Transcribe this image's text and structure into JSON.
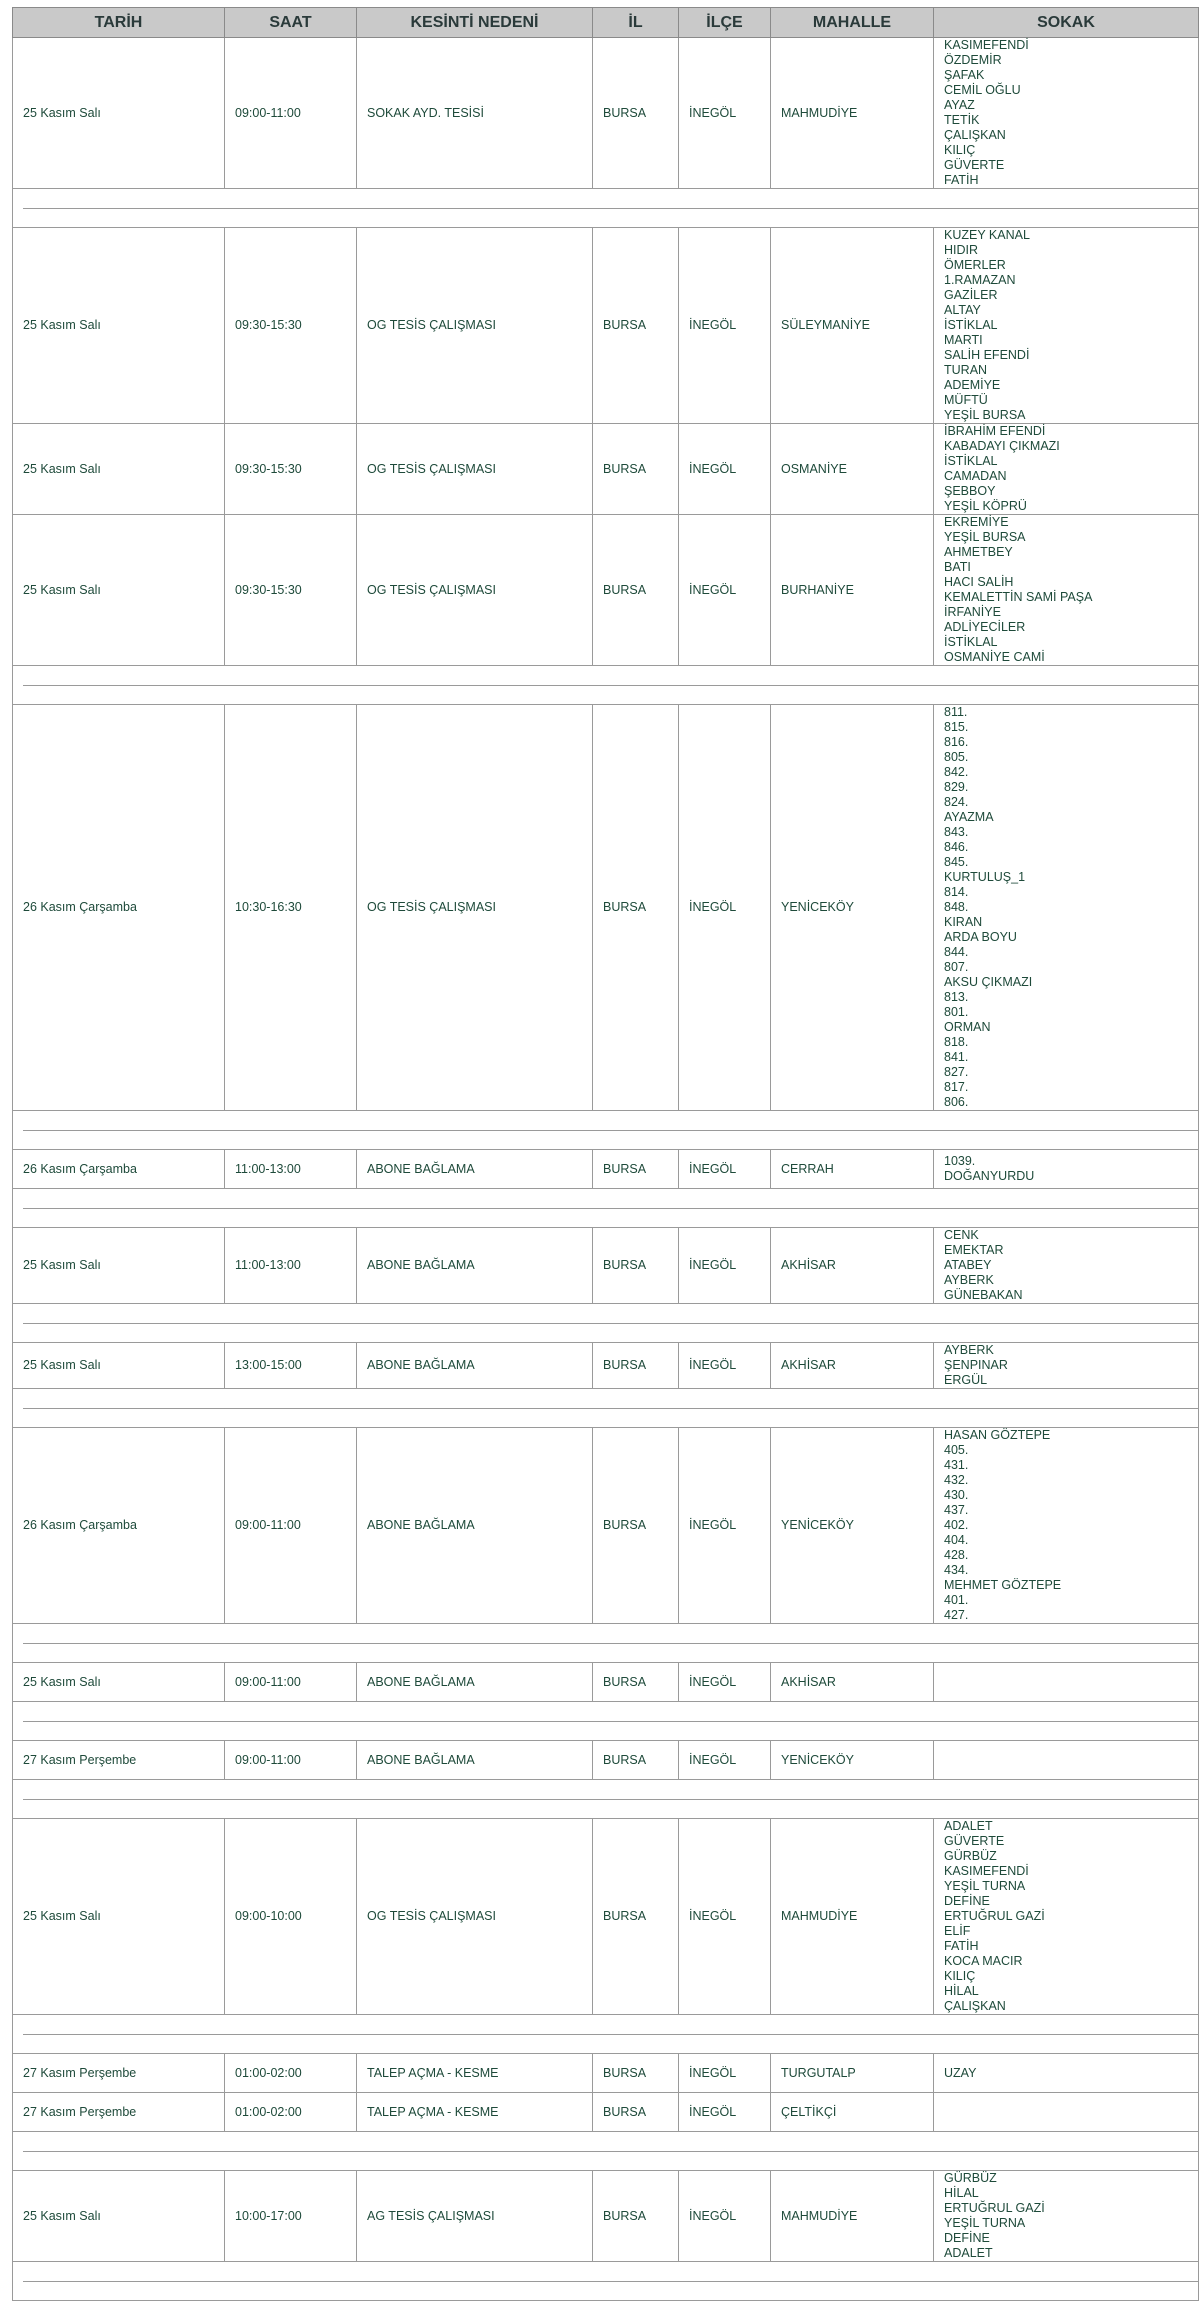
{
  "table": {
    "headers": [
      "TARİH",
      "SAAT",
      "KESİNTİ NEDENİ",
      "İL",
      "İLÇE",
      "MAHALLE",
      "SOKAK"
    ],
    "groups": [
      {
        "rows": [
          {
            "tarih": "25 Kasım Salı",
            "saat": "09:00-11:00",
            "neden": "SOKAK AYD. TESİSİ",
            "il": "BURSA",
            "ilce": "İNEGÖL",
            "mahalle": "MAHMUDİYE",
            "sokak": [
              "KASIMEFENDİ",
              "ÖZDEMİR",
              "ŞAFAK",
              "CEMİL OĞLU",
              "AYAZ",
              "TETİK",
              "ÇALIŞKAN",
              "KILIÇ",
              "GÜVERTE",
              "FATİH"
            ]
          }
        ]
      },
      {
        "rows": [
          {
            "tarih": "25 Kasım Salı",
            "saat": "09:30-15:30",
            "neden": "OG TESİS ÇALIŞMASI",
            "il": "BURSA",
            "ilce": "İNEGÖL",
            "mahalle": "SÜLEYMANİYE",
            "sokak": [
              "KUZEY KANAL",
              "HIDIR",
              "ÖMERLER",
              "1.RAMAZAN",
              "GAZİLER",
              "ALTAY",
              "İSTİKLAL",
              "MARTI",
              "SALİH EFENDİ",
              "TURAN",
              "ADEMİYE",
              "MÜFTÜ",
              "YEŞİL BURSA"
            ]
          },
          {
            "tarih": "25 Kasım Salı",
            "saat": "09:30-15:30",
            "neden": "OG TESİS ÇALIŞMASI",
            "il": "BURSA",
            "ilce": "İNEGÖL",
            "mahalle": "OSMANİYE",
            "sokak": [
              "İBRAHİM EFENDİ",
              "KABADAYI ÇIKMAZI",
              "İSTİKLAL",
              "CAMADAN",
              "ŞEBBOY",
              "YEŞİL KÖPRÜ"
            ]
          },
          {
            "tarih": "25 Kasım Salı",
            "saat": "09:30-15:30",
            "neden": "OG TESİS ÇALIŞMASI",
            "il": "BURSA",
            "ilce": "İNEGÖL",
            "mahalle": "BURHANİYE",
            "sokak": [
              "EKREMİYE",
              "YEŞİL BURSA",
              "AHMETBEY",
              "BATI",
              "HACI SALİH",
              "KEMALETTİN SAMİ PAŞA",
              "İRFANİYE",
              "ADLİYECİLER",
              "İSTİKLAL",
              "OSMANİYE CAMİ"
            ]
          }
        ]
      },
      {
        "rows": [
          {
            "tarih": "26 Kasım Çarşamba",
            "saat": "10:30-16:30",
            "neden": "OG TESİS ÇALIŞMASI",
            "il": "BURSA",
            "ilce": "İNEGÖL",
            "mahalle": "YENİCEKÖY",
            "sokak": [
              "811.",
              "815.",
              "816.",
              "805.",
              "842.",
              "829.",
              "824.",
              "AYAZMA",
              "843.",
              "846.",
              "845.",
              "KURTULUŞ_1",
              "814.",
              "848.",
              "KIRAN",
              "ARDA BOYU",
              "844.",
              "807.",
              "AKSU ÇIKMAZI",
              "813.",
              "801.",
              "ORMAN",
              "818.",
              "841.",
              "827.",
              "817.",
              "806."
            ]
          }
        ]
      },
      {
        "rows": [
          {
            "tarih": "26 Kasım Çarşamba",
            "saat": "11:00-13:00",
            "neden": "ABONE BAĞLAMA",
            "il": "BURSA",
            "ilce": "İNEGÖL",
            "mahalle": "CERRAH",
            "sokak": [
              "1039.",
              "DOĞANYURDU"
            ]
          }
        ]
      },
      {
        "rows": [
          {
            "tarih": "25 Kasım Salı",
            "saat": "11:00-13:00",
            "neden": "ABONE BAĞLAMA",
            "il": "BURSA",
            "ilce": "İNEGÖL",
            "mahalle": "AKHİSAR",
            "sokak": [
              "CENK",
              "EMEKTAR",
              "ATABEY",
              "AYBERK",
              "GÜNEBAKAN"
            ]
          }
        ]
      },
      {
        "rows": [
          {
            "tarih": "25 Kasım Salı",
            "saat": "13:00-15:00",
            "neden": "ABONE BAĞLAMA",
            "il": "BURSA",
            "ilce": "İNEGÖL",
            "mahalle": "AKHİSAR",
            "sokak": [
              "AYBERK",
              "ŞENPINAR",
              "ERGÜL"
            ]
          }
        ]
      },
      {
        "rows": [
          {
            "tarih": "26 Kasım Çarşamba",
            "saat": "09:00-11:00",
            "neden": "ABONE BAĞLAMA",
            "il": "BURSA",
            "ilce": "İNEGÖL",
            "mahalle": "YENİCEKÖY",
            "sokak": [
              "HASAN GÖZTEPE",
              "405.",
              "431.",
              "432.",
              "430.",
              "437.",
              "402.",
              "404.",
              "428.",
              "434.",
              "MEHMET GÖZTEPE",
              "401.",
              "427."
            ]
          }
        ]
      },
      {
        "rows": [
          {
            "tarih": "25 Kasım Salı",
            "saat": "09:00-11:00",
            "neden": "ABONE BAĞLAMA",
            "il": "BURSA",
            "ilce": "İNEGÖL",
            "mahalle": "AKHİSAR",
            "sokak": []
          }
        ]
      },
      {
        "rows": [
          {
            "tarih": "27 Kasım Perşembe",
            "saat": "09:00-11:00",
            "neden": "ABONE BAĞLAMA",
            "il": "BURSA",
            "ilce": "İNEGÖL",
            "mahalle": "YENİCEKÖY",
            "sokak": []
          }
        ]
      },
      {
        "rows": [
          {
            "tarih": "25 Kasım Salı",
            "saat": "09:00-10:00",
            "neden": "OG TESİS ÇALIŞMASI",
            "il": "BURSA",
            "ilce": "İNEGÖL",
            "mahalle": "MAHMUDİYE",
            "sokak": [
              "ADALET",
              "GÜVERTE",
              "GÜRBÜZ",
              "KASIMEFENDİ",
              "YEŞİL TURNA",
              "DEFİNE",
              "ERTUĞRUL GAZİ",
              "ELİF",
              "FATİH",
              "KOCA MACIR",
              "KILIÇ",
              "HİLAL",
              "ÇALIŞKAN"
            ]
          }
        ]
      },
      {
        "rows": [
          {
            "tarih": "27 Kasım Perşembe",
            "saat": "01:00-02:00",
            "neden": "TALEP AÇMA - KESME",
            "il": "BURSA",
            "ilce": "İNEGÖL",
            "mahalle": "TURGUTALP",
            "sokak": [
              "UZAY"
            ]
          },
          {
            "tarih": "27 Kasım Perşembe",
            "saat": "01:00-02:00",
            "neden": "TALEP AÇMA - KESME",
            "il": "BURSA",
            "ilce": "İNEGÖL",
            "mahalle": "ÇELTİKÇİ",
            "sokak": []
          }
        ]
      },
      {
        "rows": [
          {
            "tarih": "25 Kasım Salı",
            "saat": "10:00-17:00",
            "neden": "AG TESİS ÇALIŞMASI",
            "il": "BURSA",
            "ilce": "İNEGÖL",
            "mahalle": "MAHMUDİYE",
            "sokak": [
              "GÜRBÜZ",
              "HİLAL",
              "ERTUĞRUL GAZİ",
              "YEŞİL TURNA",
              "DEFİNE",
              "ADALET"
            ]
          }
        ]
      }
    ]
  }
}
